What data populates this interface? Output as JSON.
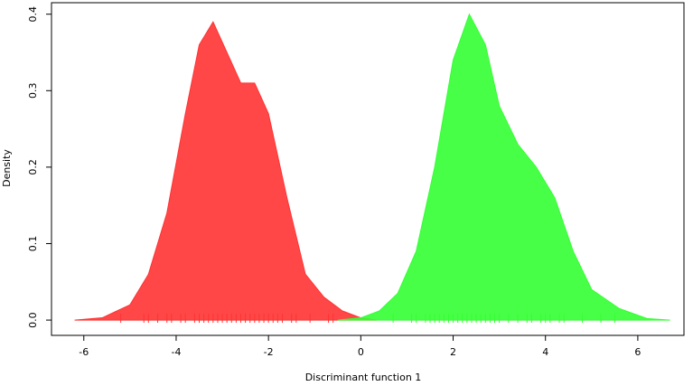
{
  "chart_data": {
    "type": "density",
    "x_label": "Discriminant function 1",
    "y_label": "Density",
    "xlim": [
      -6.7,
      7.0
    ],
    "ylim": [
      -0.02,
      0.415
    ],
    "xticks": [
      -6,
      -4,
      -2,
      0,
      2,
      4,
      6
    ],
    "yticks": [
      {
        "value": 0,
        "label": "0.0"
      },
      0.1,
      0.2,
      0.3,
      0.4
    ],
    "series": [
      {
        "color": "#ff3333",
        "x": [
          -6.2,
          -5.6,
          -5.0,
          -4.6,
          -4.2,
          -3.8,
          -3.5,
          -3.2,
          -2.9,
          -2.6,
          -2.3,
          -2.0,
          -1.6,
          -1.2,
          -0.8,
          -0.4,
          0.0,
          0.35
        ],
        "values": [
          0.0,
          0.003,
          0.02,
          0.06,
          0.14,
          0.27,
          0.36,
          0.39,
          0.35,
          0.31,
          0.31,
          0.27,
          0.16,
          0.06,
          0.03,
          0.012,
          0.003,
          0.0
        ],
        "rug": [
          -5.2,
          -4.7,
          -4.6,
          -4.4,
          -4.2,
          -4.1,
          -3.9,
          -3.8,
          -3.6,
          -3.5,
          -3.4,
          -3.3,
          -3.2,
          -3.1,
          -3.0,
          -2.9,
          -2.8,
          -2.7,
          -2.6,
          -2.5,
          -2.4,
          -2.3,
          -2.2,
          -2.1,
          -2.0,
          -1.9,
          -1.8,
          -1.7,
          -1.5,
          -1.4,
          -1.1,
          -0.7,
          -0.6
        ]
      },
      {
        "color": "#33ff33",
        "x": [
          -0.5,
          0.0,
          0.4,
          0.8,
          1.2,
          1.6,
          2.0,
          2.35,
          2.7,
          3.0,
          3.4,
          3.8,
          4.2,
          4.6,
          5.0,
          5.6,
          6.2,
          6.7
        ],
        "values": [
          0.0,
          0.003,
          0.012,
          0.035,
          0.09,
          0.2,
          0.34,
          0.4,
          0.36,
          0.28,
          0.23,
          0.2,
          0.16,
          0.09,
          0.04,
          0.015,
          0.002,
          0.0
        ],
        "rug": [
          0.7,
          1.1,
          1.2,
          1.4,
          1.5,
          1.6,
          1.7,
          1.8,
          1.9,
          2.0,
          2.1,
          2.2,
          2.3,
          2.4,
          2.5,
          2.6,
          2.7,
          2.8,
          2.9,
          3.0,
          3.2,
          3.4,
          3.6,
          3.7,
          3.9,
          4.0,
          4.1,
          4.3,
          4.4,
          4.8,
          5.2,
          5.5
        ]
      }
    ]
  }
}
